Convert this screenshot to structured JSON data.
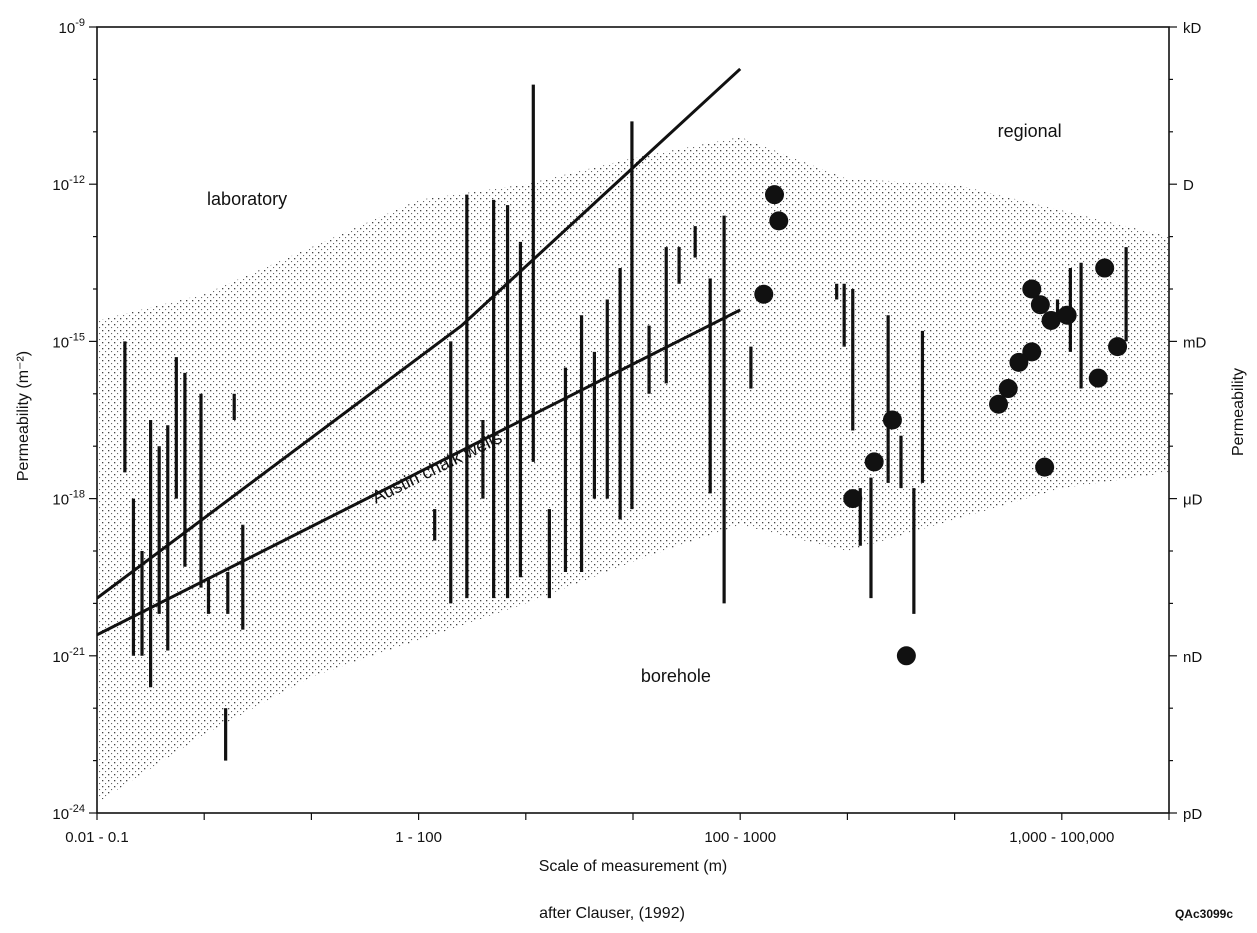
{
  "chart_data": {
    "type": "scatter",
    "title": "",
    "xlabel": "Scale of measurement (m)",
    "ylabel": "Permeability (m⁻²)",
    "ylabel_right": "Permeability",
    "note": "after Clauser, (1992)",
    "figure_id": "QAc3099c",
    "x_scale": "categorical-log",
    "x_range": [
      0,
      10
    ],
    "y_scale": "log",
    "y_range_exp": [
      -24,
      -9
    ],
    "x_tick_labels": [
      "0.01 - 0.1",
      "1 - 100",
      "100 - 1000",
      "1,000 - 100,000"
    ],
    "x_tick_label_positions": [
      0,
      3,
      6,
      9
    ],
    "y_tick_labels_left": [
      {
        "base": "10",
        "exp": "-9",
        "value": -9
      },
      {
        "base": "10",
        "exp": "-12",
        "value": -12
      },
      {
        "base": "10",
        "exp": "-15",
        "value": -15
      },
      {
        "base": "10",
        "exp": "-18",
        "value": -18
      },
      {
        "base": "10",
        "exp": "-21",
        "value": -21
      },
      {
        "base": "10",
        "exp": "-24",
        "value": -24
      }
    ],
    "y_tick_labels_right": [
      {
        "label": "kD",
        "value": -9
      },
      {
        "label": "D",
        "value": -12
      },
      {
        "label": "mD",
        "value": -15
      },
      {
        "label": "μD",
        "value": -18
      },
      {
        "label": "nD",
        "value": -21
      },
      {
        "label": "pD",
        "value": -24
      }
    ],
    "region_labels": [
      {
        "text": "laboratory",
        "x": 1.4,
        "y": -12.4
      },
      {
        "text": "regional",
        "x": 8.7,
        "y": -11.1
      },
      {
        "text": "borehole",
        "x": 5.4,
        "y": -21.5
      }
    ],
    "trend_lines": [
      {
        "name": "Austin chalk wells",
        "points": [
          [
            0,
            -19.9
          ],
          [
            3.4,
            -14.7
          ],
          [
            6,
            -9.8
          ]
        ]
      },
      {
        "name": "",
        "points": [
          [
            0,
            -20.6
          ],
          [
            6,
            -14.4
          ]
        ]
      }
    ],
    "trend_label": {
      "text": "Austin chalk wells",
      "x": 2.6,
      "y": -18.1,
      "angle": -26
    },
    "envelope": [
      [
        0,
        -23.8
      ],
      [
        1,
        -22.5
      ],
      [
        2,
        -21.4
      ],
      [
        3,
        -20.7
      ],
      [
        4,
        -20
      ],
      [
        5,
        -19.2
      ],
      [
        6,
        -18.5
      ],
      [
        7,
        -19
      ],
      [
        8,
        -18.4
      ],
      [
        9,
        -17.8
      ],
      [
        10,
        -17.5
      ],
      [
        10,
        -13
      ],
      [
        9,
        -12.5
      ],
      [
        8,
        -12
      ],
      [
        7,
        -11.9
      ],
      [
        6,
        -11.1
      ],
      [
        5,
        -11.5
      ],
      [
        4,
        -12
      ],
      [
        3,
        -12.3
      ],
      [
        2,
        -13.2
      ],
      [
        1,
        -14.1
      ],
      [
        0,
        -14.6
      ]
    ],
    "series": [
      {
        "name": "",
        "kind": "range-bars",
        "values": [
          {
            "x": 0.26,
            "y": [
              -15,
              -17.5
            ]
          },
          {
            "x": 0.34,
            "y": [
              -18,
              -21
            ]
          },
          {
            "x": 0.42,
            "y": [
              -19,
              -21
            ]
          },
          {
            "x": 0.5,
            "y": [
              -16.5,
              -21.6
            ]
          },
          {
            "x": 0.58,
            "y": [
              -17,
              -20.2
            ]
          },
          {
            "x": 0.66,
            "y": [
              -16.6,
              -20.9
            ]
          },
          {
            "x": 0.74,
            "y": [
              -15.3,
              -18
            ]
          },
          {
            "x": 0.82,
            "y": [
              -15.6,
              -19.3
            ]
          },
          {
            "x": 0.97,
            "y": [
              -16,
              -19.7
            ]
          },
          {
            "x": 1.04,
            "y": [
              -19.5,
              -20.2
            ]
          },
          {
            "x": 1.2,
            "y": [
              -22,
              -23
            ]
          },
          {
            "x": 1.22,
            "y": [
              -19.4,
              -20.2
            ]
          },
          {
            "x": 1.28,
            "y": [
              -16,
              -16.5
            ]
          },
          {
            "x": 1.36,
            "y": [
              -18.5,
              -20.5
            ]
          },
          {
            "x": 3.15,
            "y": [
              -18.2,
              -18.8
            ]
          },
          {
            "x": 3.3,
            "y": [
              -15,
              -20
            ]
          },
          {
            "x": 3.45,
            "y": [
              -12.2,
              -19.9
            ]
          },
          {
            "x": 3.6,
            "y": [
              -16.5,
              -18
            ]
          },
          {
            "x": 3.7,
            "y": [
              -12.3,
              -19.9
            ]
          },
          {
            "x": 3.83,
            "y": [
              -12.4,
              -19.9
            ]
          },
          {
            "x": 3.95,
            "y": [
              -13.1,
              -19.5
            ]
          },
          {
            "x": 4.07,
            "y": [
              -10.1,
              -17.3
            ]
          },
          {
            "x": 4.22,
            "y": [
              -18.2,
              -19.9
            ]
          },
          {
            "x": 4.37,
            "y": [
              -15.5,
              -19.4
            ]
          },
          {
            "x": 4.52,
            "y": [
              -14.5,
              -19.4
            ]
          },
          {
            "x": 4.64,
            "y": [
              -15.2,
              -18
            ]
          },
          {
            "x": 4.76,
            "y": [
              -14.2,
              -18
            ]
          },
          {
            "x": 4.88,
            "y": [
              -13.6,
              -18.4
            ]
          },
          {
            "x": 4.99,
            "y": [
              -10.8,
              -18.2
            ]
          },
          {
            "x": 5.15,
            "y": [
              -14.7,
              -16
            ]
          },
          {
            "x": 5.31,
            "y": [
              -13.2,
              -15.8
            ]
          },
          {
            "x": 5.43,
            "y": [
              -13.2,
              -13.9
            ]
          },
          {
            "x": 5.58,
            "y": [
              -12.8,
              -13.4
            ]
          },
          {
            "x": 5.72,
            "y": [
              -13.8,
              -17.9
            ]
          },
          {
            "x": 5.85,
            "y": [
              -12.6,
              -20
            ]
          },
          {
            "x": 6.1,
            "y": [
              -15.1,
              -15.9
            ]
          },
          {
            "x": 6.9,
            "y": [
              -13.9,
              -14.2
            ]
          },
          {
            "x": 6.97,
            "y": [
              -13.9,
              -15.1
            ]
          },
          {
            "x": 7.05,
            "y": [
              -14,
              -16.7
            ]
          },
          {
            "x": 7.12,
            "y": [
              -17.8,
              -18.9
            ]
          },
          {
            "x": 7.22,
            "y": [
              -17.6,
              -19.9
            ]
          },
          {
            "x": 7.38,
            "y": [
              -14.5,
              -17.7
            ]
          },
          {
            "x": 7.5,
            "y": [
              -16.8,
              -17.8
            ]
          },
          {
            "x": 7.62,
            "y": [
              -17.8,
              -20.2
            ]
          },
          {
            "x": 7.7,
            "y": [
              -14.8,
              -17.7
            ]
          },
          {
            "x": 8.96,
            "y": [
              -14.2,
              -14.6
            ]
          },
          {
            "x": 9.08,
            "y": [
              -13.6,
              -15.2
            ]
          },
          {
            "x": 9.18,
            "y": [
              -13.5,
              -15.9
            ]
          },
          {
            "x": 9.6,
            "y": [
              -13.2,
              -15
            ]
          }
        ]
      },
      {
        "name": "",
        "kind": "points",
        "values": [
          {
            "x": 6.32,
            "y": -12.2
          },
          {
            "x": 6.36,
            "y": -12.7
          },
          {
            "x": 6.22,
            "y": -14.1
          },
          {
            "x": 7.42,
            "y": -16.5
          },
          {
            "x": 7.25,
            "y": -17.3
          },
          {
            "x": 7.05,
            "y": -18
          },
          {
            "x": 7.55,
            "y": -21
          },
          {
            "x": 8.72,
            "y": -14
          },
          {
            "x": 8.9,
            "y": -14.6
          },
          {
            "x": 8.8,
            "y": -14.3
          },
          {
            "x": 8.72,
            "y": -15.2
          },
          {
            "x": 8.6,
            "y": -15.4
          },
          {
            "x": 8.5,
            "y": -15.9
          },
          {
            "x": 8.41,
            "y": -16.2
          },
          {
            "x": 8.84,
            "y": -17.4
          },
          {
            "x": 9.05,
            "y": -14.5
          },
          {
            "x": 9.4,
            "y": -13.6
          },
          {
            "x": 9.52,
            "y": -15.1
          },
          {
            "x": 9.34,
            "y": -15.7
          }
        ]
      }
    ],
    "grid": false,
    "legend": "none"
  }
}
